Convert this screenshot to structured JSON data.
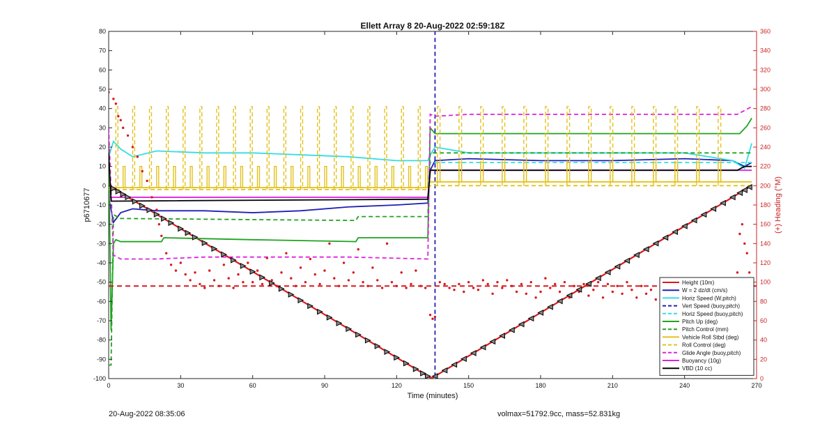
{
  "chart_data": {
    "type": "line",
    "title": "Ellett Array 8 20-Aug-2022 02:59:18Z",
    "xlabel": "Time (minutes)",
    "ylabel_left": "p6710677",
    "ylabel_right": "(+) Heading (°M)",
    "xlim": [
      0,
      270
    ],
    "ylim_left": [
      -100,
      80
    ],
    "ylim_right": [
      0,
      360
    ],
    "x_ticks": [
      0,
      30,
      60,
      90,
      120,
      150,
      180,
      210,
      240,
      270
    ],
    "y_ticks_left": [
      -100,
      -90,
      -80,
      -70,
      -60,
      -50,
      -40,
      -30,
      -20,
      -10,
      0,
      10,
      20,
      30,
      40,
      50,
      60,
      70,
      80
    ],
    "y_ticks_right": [
      0,
      20,
      40,
      60,
      80,
      100,
      120,
      140,
      160,
      180,
      200,
      220,
      240,
      260,
      280,
      300,
      320,
      340,
      360
    ],
    "grid": false,
    "legend_position": "bottom-right",
    "colors": {
      "red": "#d7191c",
      "blue": "#1f1fb4",
      "cyan": "#33dde6",
      "green": "#1fa31f",
      "yellow": "#e3c11b",
      "magenta": "#dd22dd",
      "black": "#000000",
      "axis_right": "#cc2222"
    },
    "series": [
      {
        "name": "Height (10m)",
        "color": "#d7191c",
        "style": "solid",
        "x": [
          0,
          134,
          135,
          268
        ],
        "y": [
          0,
          -99.5,
          -99.5,
          0
        ]
      },
      {
        "name": "W = 2 dz/dt (cm/s)",
        "color": "#1f1fb4",
        "style": "solid",
        "x": [
          0,
          2,
          5,
          10,
          20,
          40,
          60,
          80,
          100,
          120,
          133,
          134,
          136,
          150,
          180,
          210,
          240,
          260,
          265,
          268
        ],
        "y": [
          -6,
          -19,
          -14,
          -12,
          -13,
          -13,
          -14,
          -13,
          -11,
          -10,
          -9,
          8,
          13,
          14,
          13,
          13,
          14,
          13,
          10,
          12
        ]
      },
      {
        "name": "Horiz Speed (W,pitch)",
        "color": "#33dde6",
        "style": "solid",
        "x": [
          0,
          2,
          5,
          10,
          20,
          40,
          60,
          80,
          100,
          120,
          133,
          134,
          136,
          150,
          180,
          210,
          240,
          260,
          265,
          268
        ],
        "y": [
          15,
          23,
          19,
          15,
          18,
          17,
          17,
          16,
          15,
          13,
          13,
          16,
          20,
          17,
          17,
          17,
          17,
          13,
          9,
          22
        ]
      },
      {
        "name": "Vert Speed (buoy,pitch)",
        "color": "#1f1fb4",
        "style": "dashed",
        "x": [
          136,
          136
        ],
        "y": [
          -99,
          80
        ]
      },
      {
        "name": "Horiz Speed (buoy,pitch)",
        "color": "#33dde6",
        "style": "dashed",
        "x": [
          0,
          133,
          134,
          268
        ],
        "y": [
          -1,
          -1,
          12,
          12
        ]
      },
      {
        "name": "Pitch Up (deg)",
        "color": "#1fa31f",
        "style": "solid",
        "x": [
          0,
          1,
          2,
          3,
          5,
          10,
          22,
          23,
          60,
          103,
          104,
          133,
          134,
          136,
          150,
          180,
          210,
          240,
          263,
          266,
          268
        ],
        "y": [
          20,
          -75,
          -30,
          -28,
          -29,
          -29,
          -29,
          -27,
          -28,
          -29,
          -27,
          -27,
          30,
          27,
          27,
          27,
          27,
          27,
          27,
          31,
          35
        ]
      },
      {
        "name": "Pitch Control (mm)",
        "color": "#1fa31f",
        "style": "dashed",
        "x": [
          0,
          1,
          2,
          5,
          100,
          103,
          104,
          133,
          134,
          268
        ],
        "y": [
          -93,
          -93,
          -15,
          -17,
          -18,
          -18,
          -16,
          -16,
          17,
          17
        ]
      },
      {
        "name": "Vehicle Roll Stbd (deg)",
        "color": "#e3c11b",
        "style": "solid",
        "x": [
          0,
          133,
          134,
          268
        ],
        "y": [
          -1,
          -1,
          2,
          2
        ]
      },
      {
        "name": "Roll Control (deg)",
        "color": "#e3c11b",
        "style": "dashed",
        "x": [
          0,
          133,
          134,
          268
        ],
        "y": [
          -2,
          -2,
          0,
          0
        ]
      },
      {
        "name": "Glide Angle (buoy,pitch)",
        "color": "#dd22dd",
        "style": "dashed",
        "x": [
          0,
          2,
          5,
          20,
          40,
          60,
          80,
          100,
          133,
          134,
          136,
          150,
          180,
          210,
          240,
          262,
          265,
          268
        ],
        "y": [
          30,
          -36,
          -38,
          -38,
          -37,
          -37,
          -37,
          -37,
          -38,
          37,
          36,
          37,
          37,
          37,
          37,
          37,
          39,
          41
        ]
      },
      {
        "name": "Buoyancy (10g)",
        "color": "#dd22dd",
        "style": "solid",
        "x": [
          0,
          133,
          134,
          268
        ],
        "y": [
          -6,
          -6,
          8,
          8
        ]
      },
      {
        "name": "VBD (10 cc)",
        "color": "#000000",
        "style": "solid",
        "x": [
          0,
          1,
          2,
          133,
          134,
          136,
          262,
          265,
          268
        ],
        "y": [
          17,
          -8,
          -8,
          -7,
          8,
          8,
          8,
          10,
          10
        ]
      }
    ],
    "heading_points": [
      [
        0,
        297
      ],
      [
        2,
        290
      ],
      [
        3,
        285
      ],
      [
        4,
        272
      ],
      [
        5,
        268
      ],
      [
        6,
        260
      ],
      [
        8,
        252
      ],
      [
        10,
        240
      ],
      [
        12,
        230
      ],
      [
        14,
        215
      ],
      [
        16,
        205
      ],
      [
        18,
        188
      ],
      [
        20,
        175
      ],
      [
        21,
        160
      ],
      [
        22,
        148
      ],
      [
        24,
        130
      ],
      [
        26,
        118
      ],
      [
        28,
        112
      ],
      [
        30,
        120
      ],
      [
        32,
        108
      ],
      [
        34,
        102
      ],
      [
        36,
        110
      ],
      [
        38,
        98
      ],
      [
        40,
        94
      ],
      [
        42,
        112
      ],
      [
        44,
        102
      ],
      [
        46,
        96
      ],
      [
        48,
        118
      ],
      [
        50,
        104
      ],
      [
        52,
        94
      ],
      [
        54,
        108
      ],
      [
        56,
        100
      ],
      [
        58,
        120
      ],
      [
        60,
        100
      ],
      [
        62,
        112
      ],
      [
        64,
        98
      ],
      [
        66,
        125
      ],
      [
        68,
        102
      ],
      [
        70,
        96
      ],
      [
        72,
        110
      ],
      [
        74,
        130
      ],
      [
        76,
        104
      ],
      [
        78,
        96
      ],
      [
        80,
        115
      ],
      [
        82,
        100
      ],
      [
        84,
        124
      ],
      [
        86,
        108
      ],
      [
        88,
        98
      ],
      [
        90,
        112
      ],
      [
        92,
        140
      ],
      [
        94,
        104
      ],
      [
        96,
        96
      ],
      [
        98,
        120
      ],
      [
        100,
        102
      ],
      [
        102,
        110
      ],
      [
        104,
        134
      ],
      [
        106,
        100
      ],
      [
        108,
        96
      ],
      [
        110,
        115
      ],
      [
        112,
        102
      ],
      [
        114,
        94
      ],
      [
        116,
        140
      ],
      [
        118,
        100
      ],
      [
        120,
        96
      ],
      [
        122,
        110
      ],
      [
        124,
        94
      ],
      [
        126,
        98
      ],
      [
        128,
        112
      ],
      [
        130,
        96
      ],
      [
        132,
        94
      ],
      [
        134,
        66
      ],
      [
        135,
        62
      ],
      [
        136,
        64
      ],
      [
        138,
        100
      ],
      [
        140,
        98
      ],
      [
        142,
        94
      ],
      [
        144,
        92
      ],
      [
        146,
        98
      ],
      [
        148,
        90
      ],
      [
        150,
        100
      ],
      [
        152,
        94
      ],
      [
        154,
        92
      ],
      [
        156,
        102
      ],
      [
        158,
        98
      ],
      [
        160,
        88
      ],
      [
        162,
        100
      ],
      [
        164,
        94
      ],
      [
        166,
        102
      ],
      [
        168,
        96
      ],
      [
        170,
        90
      ],
      [
        172,
        98
      ],
      [
        174,
        88
      ],
      [
        176,
        100
      ],
      [
        178,
        84
      ],
      [
        180,
        90
      ],
      [
        182,
        104
      ],
      [
        184,
        94
      ],
      [
        186,
        98
      ],
      [
        188,
        90
      ],
      [
        190,
        100
      ],
      [
        192,
        84
      ],
      [
        194,
        96
      ],
      [
        196,
        90
      ],
      [
        198,
        98
      ],
      [
        200,
        86
      ],
      [
        202,
        92
      ],
      [
        204,
        100
      ],
      [
        206,
        84
      ],
      [
        208,
        98
      ],
      [
        210,
        90
      ],
      [
        212,
        96
      ],
      [
        214,
        88
      ],
      [
        216,
        100
      ],
      [
        218,
        92
      ],
      [
        220,
        84
      ],
      [
        222,
        96
      ],
      [
        224,
        88
      ],
      [
        226,
        92
      ],
      [
        228,
        82
      ],
      [
        230,
        96
      ],
      [
        232,
        90
      ],
      [
        234,
        84
      ],
      [
        236,
        96
      ],
      [
        238,
        88
      ],
      [
        240,
        92
      ],
      [
        242,
        84
      ],
      [
        244,
        98
      ],
      [
        246,
        86
      ],
      [
        248,
        92
      ],
      [
        250,
        88
      ],
      [
        252,
        96
      ],
      [
        254,
        90
      ],
      [
        256,
        84
      ],
      [
        258,
        100
      ],
      [
        260,
        92
      ],
      [
        262,
        110
      ],
      [
        263,
        150
      ],
      [
        264,
        160
      ],
      [
        265,
        140
      ],
      [
        266,
        130
      ],
      [
        267,
        110
      ],
      [
        268,
        100
      ]
    ],
    "heading_ref": {
      "value": 96,
      "color": "#d7191c",
      "style": "dashed"
    },
    "markers_down": [
      2,
      4,
      6,
      8,
      11,
      14,
      17,
      20,
      23,
      26,
      30,
      33,
      36,
      40,
      44,
      48,
      52,
      56,
      60,
      64,
      68,
      72,
      76,
      80,
      84,
      88,
      92,
      96,
      100,
      104,
      108,
      112,
      116,
      120,
      124,
      128,
      131,
      133
    ],
    "markers_up": [
      136,
      140,
      144,
      148,
      152,
      156,
      160,
      164,
      168,
      172,
      176,
      180,
      184,
      188,
      192,
      196,
      200,
      204,
      208,
      212,
      216,
      220,
      224,
      228,
      232,
      236,
      240,
      244,
      248,
      252,
      256,
      260,
      263,
      265,
      267
    ]
  },
  "footer": {
    "left": "20-Aug-2022 08:35:06",
    "right": "volmax=51792.9cc, mass=52.831kg"
  }
}
